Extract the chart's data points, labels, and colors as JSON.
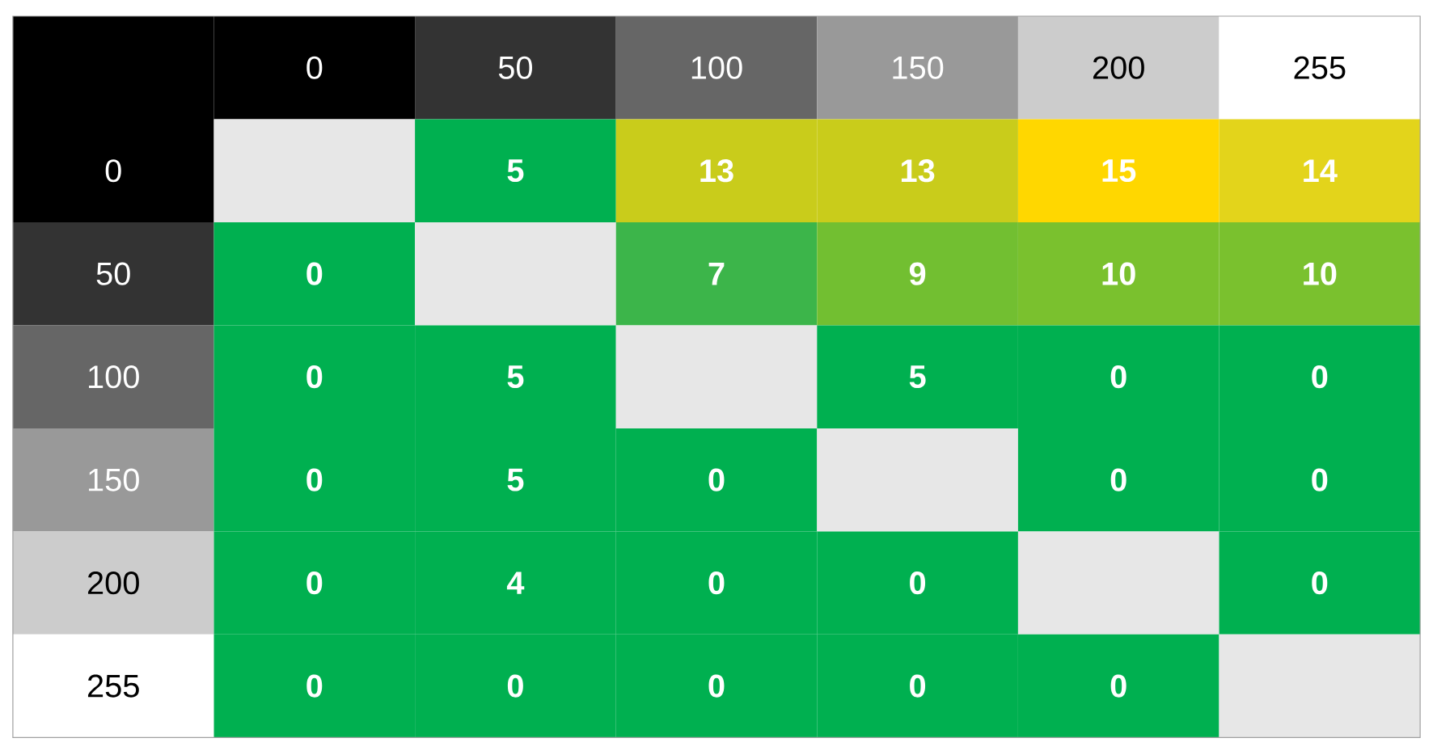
{
  "chart_data": {
    "type": "heatmap",
    "data_labels": true,
    "categories": [
      "0",
      "50",
      "100",
      "150",
      "200",
      "255"
    ],
    "y_categories": [
      "0",
      "50",
      "100",
      "150",
      "200",
      "255"
    ],
    "cells": [
      [
        null,
        5,
        13,
        13,
        15,
        14
      ],
      [
        0,
        null,
        7,
        9,
        10,
        10
      ],
      [
        0,
        5,
        null,
        5,
        0,
        0
      ],
      [
        0,
        5,
        0,
        null,
        0,
        0
      ],
      [
        0,
        4,
        0,
        0,
        null,
        0
      ],
      [
        0,
        0,
        0,
        0,
        0,
        null
      ]
    ],
    "colors": [
      [
        null,
        "#00b050",
        "#c9cc1b",
        "#c9cc1b",
        "#ffd700",
        "#e3d41b"
      ],
      [
        "#00b050",
        null,
        "#3cb54a",
        "#72bf31",
        "#7ac12e",
        "#7ac12e"
      ],
      [
        "#00b050",
        "#00b050",
        null,
        "#00b050",
        "#00b050",
        "#00b050"
      ],
      [
        "#00b050",
        "#00b050",
        "#00b050",
        null,
        "#00b050",
        "#00b050"
      ],
      [
        "#00b050",
        "#00b050",
        "#00b050",
        "#00b050",
        null,
        "#00b050"
      ],
      [
        "#00b050",
        "#00b050",
        "#00b050",
        "#00b050",
        "#00b050",
        null
      ]
    ]
  }
}
